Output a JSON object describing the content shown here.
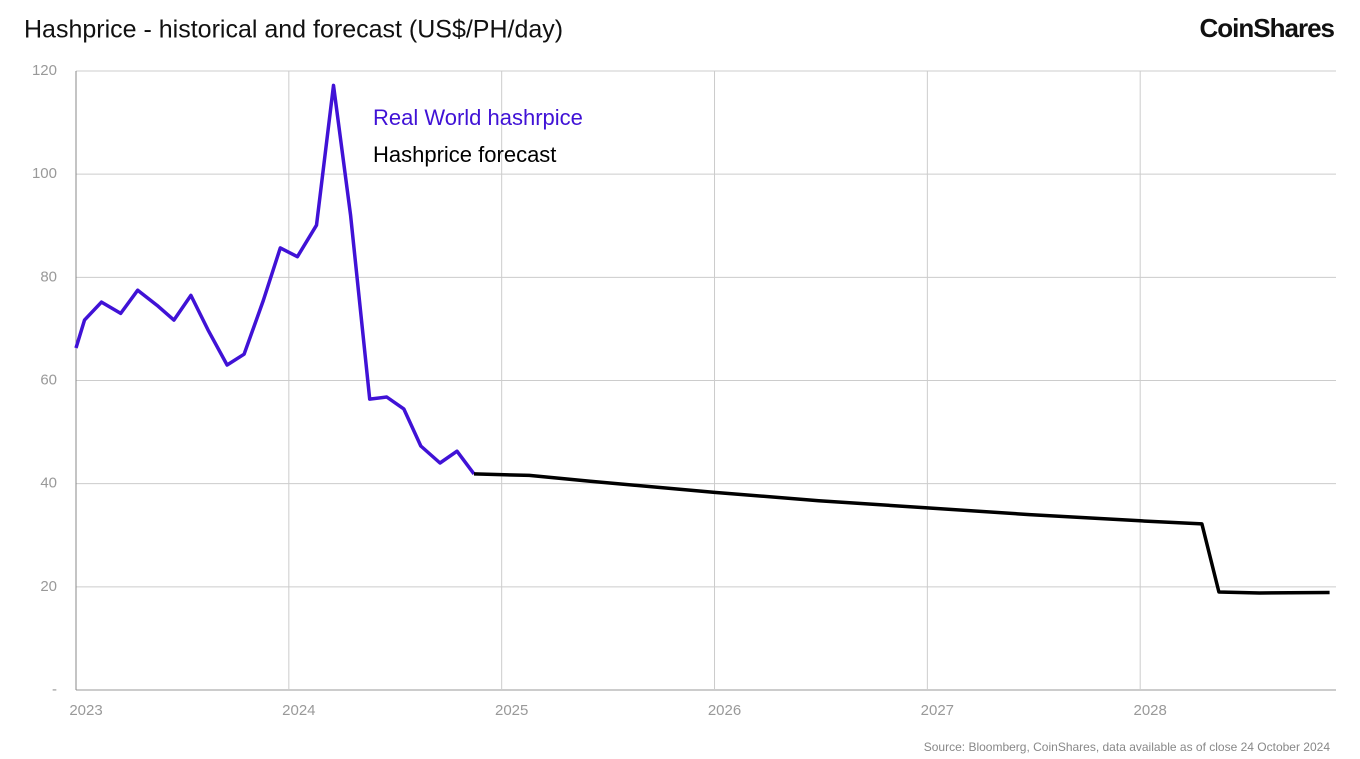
{
  "chart_data": {
    "type": "line",
    "title": "Hashprice - historical and forecast (US$/PH/day)",
    "brand": "CoinShares",
    "source": "Source: Bloomberg, CoinShares, data available as of close 24 October 2024",
    "series": [
      {
        "name": "Real World hashrpice",
        "color": "#4012d6",
        "x": [
          2023.0,
          2023.04,
          2023.12,
          2023.21,
          2023.29,
          2023.38,
          2023.46,
          2023.54,
          2023.62,
          2023.71,
          2023.79,
          2023.88,
          2023.96,
          2024.04,
          2024.13,
          2024.21,
          2024.29,
          2024.38,
          2024.46,
          2024.54,
          2024.62,
          2024.71,
          2024.79,
          2024.87
        ],
        "values": [
          66.3,
          71.7,
          75.2,
          73,
          77.5,
          74.6,
          71.7,
          76.5,
          69.8,
          63,
          65.1,
          75.5,
          85.7,
          84,
          90.1,
          117.2,
          92,
          56.4,
          56.8,
          54.5,
          47.3,
          44,
          46.3,
          41.9
        ]
      },
      {
        "name": "Hashprice forecast",
        "color": "#000000",
        "x": [
          2024.87,
          2025.13,
          2025.41,
          2026.0,
          2026.49,
          2027.0,
          2027.48,
          2028.0,
          2028.29,
          2028.37,
          2028.56,
          2028.89
        ],
        "values": [
          41.9,
          41.6,
          40.5,
          38.3,
          36.7,
          35.3,
          34,
          32.8,
          32.2,
          19,
          18.8,
          18.9
        ]
      }
    ],
    "xlim": [
      2023,
      2028.92
    ],
    "xticks": [
      2023,
      2024,
      2025,
      2026,
      2027,
      2028
    ],
    "ylim": [
      0,
      120
    ],
    "yticks": [
      {
        "value": 0,
        "label": "-"
      },
      20,
      40,
      60,
      80,
      100,
      120
    ],
    "grid": true
  }
}
